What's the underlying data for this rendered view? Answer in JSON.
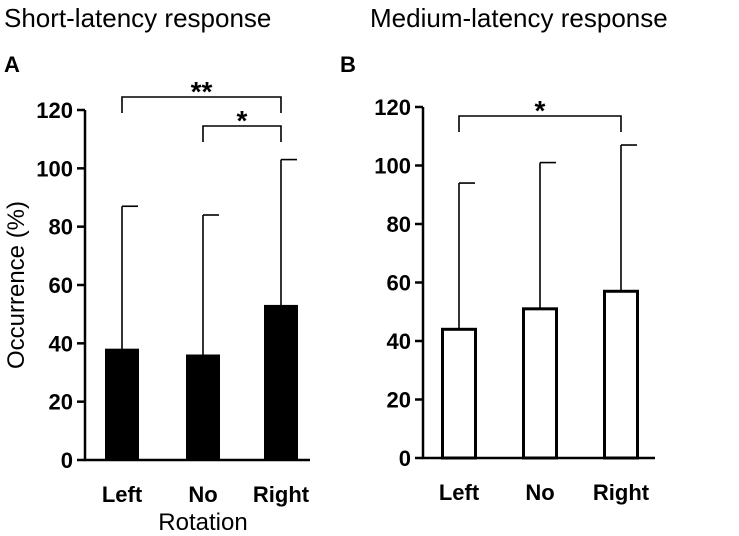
{
  "chart_data": [
    {
      "type": "bar",
      "panel": "A",
      "title": "Short-latency response",
      "categories": [
        "Left",
        "No",
        "Right"
      ],
      "values": [
        38,
        36,
        53
      ],
      "errors": [
        49,
        48,
        50
      ],
      "fill": "#000000",
      "ylabel": "Occurrence (%)",
      "xlabel": "Rotation",
      "ylim": [
        0,
        120
      ],
      "yticks": [
        0,
        20,
        40,
        60,
        80,
        100,
        120
      ],
      "significance": [
        {
          "from": 0,
          "to": 2,
          "label": "**"
        },
        {
          "from": 1,
          "to": 2,
          "label": "*"
        }
      ]
    },
    {
      "type": "bar",
      "panel": "B",
      "title": "Medium-latency response",
      "categories": [
        "Left",
        "No",
        "Right"
      ],
      "values": [
        44,
        51,
        57
      ],
      "errors": [
        50,
        50,
        50
      ],
      "fill": "#ffffff",
      "ylabel": "",
      "xlabel": "",
      "ylim": [
        0,
        120
      ],
      "yticks": [
        0,
        20,
        40,
        60,
        80,
        100,
        120
      ],
      "significance": [
        {
          "from": 0,
          "to": 2,
          "label": "*"
        }
      ]
    }
  ]
}
